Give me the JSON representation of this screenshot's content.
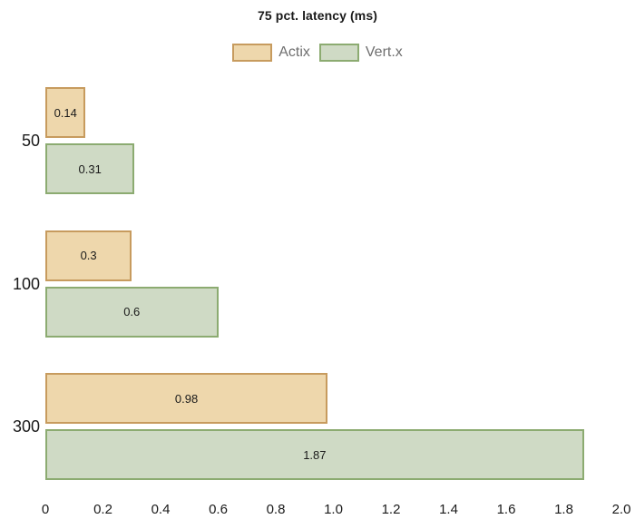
{
  "chart_data": {
    "type": "bar",
    "orientation": "horizontal",
    "title": "75 pct. latency (ms)",
    "categories": [
      "50",
      "100",
      "300"
    ],
    "series": [
      {
        "name": "Actix",
        "values": [
          0.14,
          0.3,
          0.98
        ],
        "labels": [
          "0.14",
          "0.3",
          "0.98"
        ],
        "fill_color": "#eed7ac",
        "border_color": "#c79b5e"
      },
      {
        "name": "Vert.x",
        "values": [
          0.31,
          0.6,
          1.87
        ],
        "labels": [
          "0.31",
          "0.6",
          "1.87"
        ],
        "fill_color": "#cfdac5",
        "border_color": "#8cab71"
      }
    ],
    "xlim": [
      0,
      2.0
    ],
    "xticks": [
      "0",
      "0.2",
      "0.4",
      "0.6",
      "0.8",
      "1.0",
      "1.2",
      "1.4",
      "1.6",
      "1.8",
      "2.0"
    ],
    "legend_position": "top",
    "grid": false,
    "text_color": "#1a1a1a",
    "legend_text_color": "#6f6f6f",
    "background_color": "#ffffff"
  }
}
